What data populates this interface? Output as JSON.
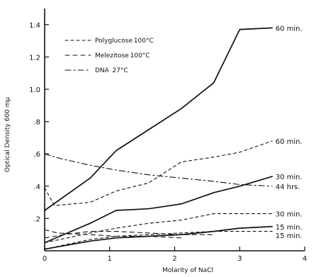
{
  "chart_data": {
    "type": "line",
    "xlabel": "Molarity of NaCl",
    "ylabel": "Optical Density  600 mμ",
    "xlim": [
      0,
      4
    ],
    "ylim": [
      0,
      1.5
    ],
    "x_ticks": [
      {
        "value": 0,
        "label": "0"
      },
      {
        "value": 1,
        "label": "1"
      },
      {
        "value": 2,
        "label": "2"
      },
      {
        "value": 3,
        "label": "3"
      },
      {
        "value": 4,
        "label": "4"
      }
    ],
    "y_ticks": [
      {
        "value": 0.2,
        "label": ".2"
      },
      {
        "value": 0.4,
        "label": ".4"
      },
      {
        "value": 0.6,
        "label": ".6"
      },
      {
        "value": 0.8,
        "label": ".8"
      },
      {
        "value": 1.0,
        "label": "1.0"
      },
      {
        "value": 1.2,
        "label": "1.2"
      },
      {
        "value": 1.4,
        "label": "1.4"
      }
    ],
    "legend": [
      {
        "text": "Polyglucose 100°C",
        "style": "dashed"
      },
      {
        "text": "Melezitose 100°C",
        "style": "dash-long"
      },
      {
        "text": "DNA  27°C",
        "style": "dashdot"
      }
    ],
    "series": [
      {
        "name": "60 min.",
        "style": "solid",
        "x": [
          0,
          0.7,
          1.1,
          1.6,
          2.1,
          2.6,
          3.0,
          3.5
        ],
        "y": [
          0.25,
          0.45,
          0.62,
          0.75,
          0.88,
          1.04,
          1.37,
          1.38
        ]
      },
      {
        "name": "60 min.",
        "style": "dashed",
        "x": [
          0,
          0.15,
          0.7,
          1.1,
          1.6,
          2.1,
          2.6,
          3.0,
          3.5
        ],
        "y": [
          0.39,
          0.28,
          0.3,
          0.37,
          0.42,
          0.55,
          0.58,
          0.61,
          0.68
        ]
      },
      {
        "name": "30 min.",
        "style": "solid",
        "x": [
          0,
          0.7,
          1.1,
          1.6,
          2.1,
          2.6,
          3.0,
          3.5
        ],
        "y": [
          0.05,
          0.17,
          0.25,
          0.26,
          0.29,
          0.36,
          0.4,
          0.46
        ]
      },
      {
        "name": "44 hrs.",
        "style": "dashdot",
        "x": [
          0,
          0.25,
          0.7,
          1.1,
          1.6,
          2.1,
          2.6,
          3.0,
          3.5
        ],
        "y": [
          0.6,
          0.57,
          0.53,
          0.5,
          0.47,
          0.45,
          0.43,
          0.41,
          0.4
        ]
      },
      {
        "name": "30 min.",
        "style": "dashed",
        "x": [
          0,
          0.7,
          1.1,
          1.6,
          2.1,
          2.6,
          3.0,
          3.5
        ],
        "y": [
          0.05,
          0.11,
          0.14,
          0.17,
          0.19,
          0.23,
          0.23,
          0.23
        ]
      },
      {
        "name": "15 min.",
        "style": "solid",
        "x": [
          0,
          0.7,
          1.1,
          1.6,
          2.1,
          2.6,
          3.0,
          3.5
        ],
        "y": [
          0.01,
          0.06,
          0.08,
          0.09,
          0.1,
          0.12,
          0.14,
          0.15
        ]
      },
      {
        "name": "15 min.",
        "style": "dashed",
        "x": [
          0,
          0.7,
          1.1,
          1.6,
          2.1,
          2.6,
          3.0,
          3.5
        ],
        "y": [
          0.01,
          0.07,
          0.09,
          0.1,
          0.11,
          0.12,
          0.12,
          0.12
        ]
      },
      {
        "name": "",
        "style": "dash-long",
        "x": [
          0,
          0.3,
          0.7,
          1.1,
          1.6,
          2.1,
          2.6
        ],
        "y": [
          0.08,
          0.1,
          0.12,
          0.12,
          0.11,
          0.1,
          0.1
        ]
      },
      {
        "name": "",
        "style": "dash-long",
        "x": [
          0,
          0.2,
          0.7,
          1.1,
          1.6,
          2.1
        ],
        "y": [
          0.13,
          0.11,
          0.1,
          0.09,
          0.09,
          0.08
        ]
      }
    ]
  }
}
